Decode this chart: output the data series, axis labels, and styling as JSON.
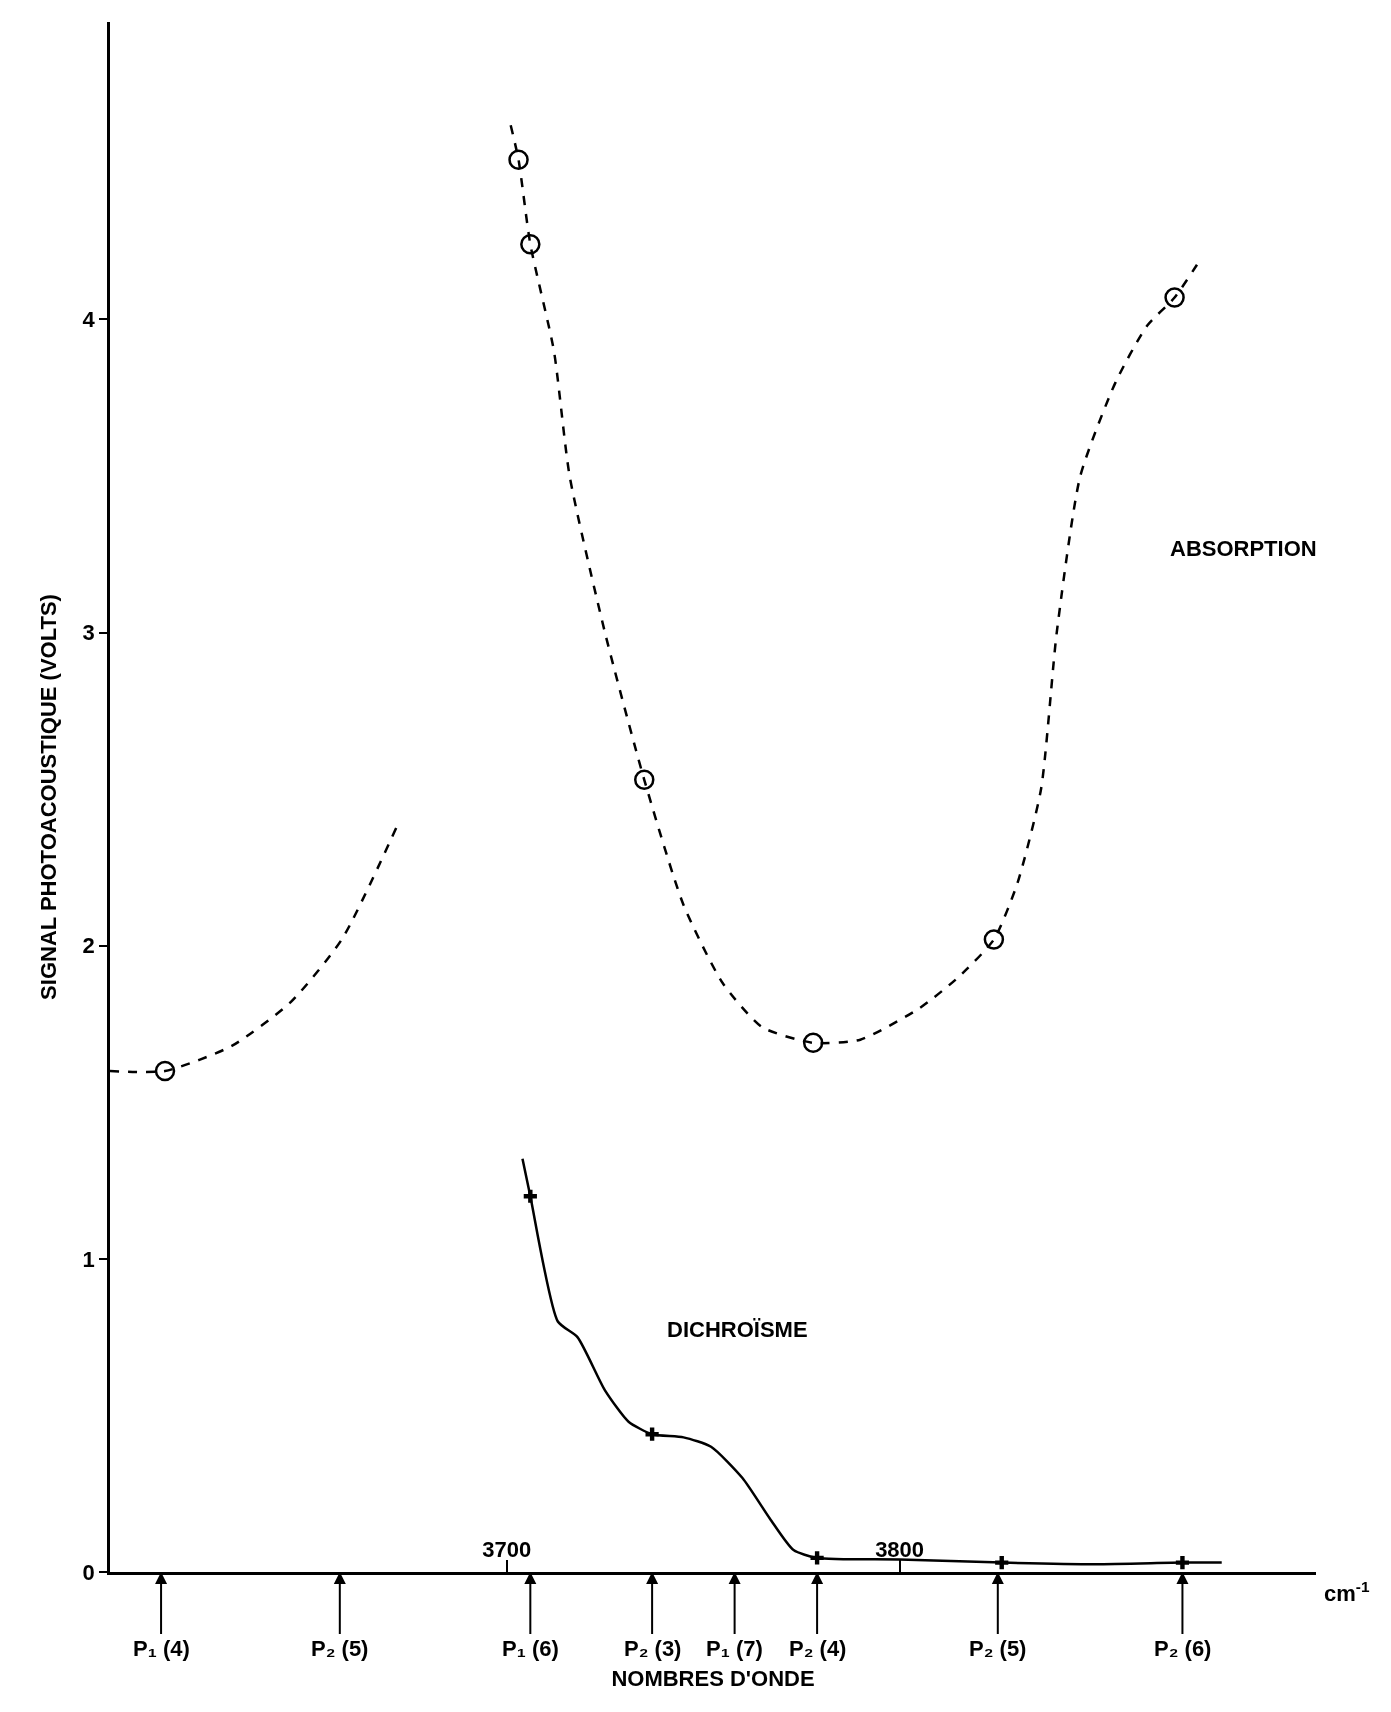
{
  "chart_data": {
    "type": "line",
    "xlabel": "NOMBRES D'ONDE",
    "ylabel": "SIGNAL PHOTOACOUSTIQUE (VOLTS)",
    "xlim": [
      3599,
      3906
    ],
    "ylim": [
      0,
      4.95
    ],
    "xticks": [
      3700,
      3800
    ],
    "ref_lines": [
      {
        "axis": "x",
        "value": 3612,
        "label": "P₁ (4)"
      },
      {
        "axis": "x",
        "value": 3657.5,
        "label": "P₂ (5)"
      },
      {
        "axis": "x",
        "value": 3706,
        "label": "P₁ (6)"
      },
      {
        "axis": "x",
        "value": 3737,
        "label": "P₂ (3)"
      },
      {
        "axis": "x",
        "value": 3758,
        "label": "P₁ (7)"
      },
      {
        "axis": "x",
        "value": 3779,
        "label": "P₂ (4)"
      },
      {
        "axis": "x",
        "value": 3825,
        "label": "P₂ (5)"
      },
      {
        "axis": "x",
        "value": 3872,
        "label": "P₂ (6)"
      }
    ],
    "yticks": [
      0,
      1,
      2,
      3,
      4
    ],
    "series": [
      {
        "line_style": "dashed",
        "marker": "none",
        "color": "#000000",
        "x": [
          3599,
          3613,
          3630,
          3645,
          3658,
          3672,
          null,
          3701,
          3703,
          3706,
          3712,
          3716,
          3725,
          3735,
          3745,
          3755,
          3765,
          3778,
          3790,
          3805,
          3815,
          3824,
          3830,
          3836,
          3840,
          3846,
          3855,
          3863,
          3870,
          3877
        ],
        "values": [
          1.6,
          1.6,
          1.68,
          1.82,
          2.02,
          2.38,
          null,
          4.62,
          4.51,
          4.24,
          3.9,
          3.5,
          3.0,
          2.53,
          2.13,
          1.88,
          1.74,
          1.69,
          1.7,
          1.8,
          1.9,
          2.02,
          2.2,
          2.5,
          3.0,
          3.5,
          3.8,
          3.98,
          4.07,
          4.2
        ]
      },
      {
        "type": "scatter",
        "marker": "circle",
        "color": "#000000",
        "x": [
          3613,
          3703,
          3706,
          3735,
          3778,
          3824,
          3870
        ],
        "values": [
          1.6,
          4.51,
          4.24,
          2.53,
          1.69,
          2.02,
          4.07
        ]
      },
      {
        "line_style": "solid",
        "marker": "none",
        "color": "#000000",
        "x": [
          3704,
          3706,
          3713,
          3718,
          3725,
          3731,
          3737,
          3745,
          3752,
          3760,
          3767,
          3773,
          3779,
          3800,
          3826,
          3850,
          3872,
          3882
        ],
        "values": [
          1.32,
          1.2,
          0.8,
          0.75,
          0.58,
          0.48,
          0.44,
          0.43,
          0.4,
          0.3,
          0.17,
          0.07,
          0.045,
          0.04,
          0.03,
          0.025,
          0.03,
          0.03
        ]
      },
      {
        "type": "scatter",
        "marker": "cross",
        "color": "#000000",
        "x": [
          3706,
          3737,
          3779,
          3826,
          3872
        ],
        "values": [
          1.2,
          0.44,
          0.045,
          0.03,
          0.03
        ]
      }
    ],
    "annotations": [
      "ABSORPTION",
      "DICHROÏSME",
      "cm$^{-1}$"
    ]
  }
}
